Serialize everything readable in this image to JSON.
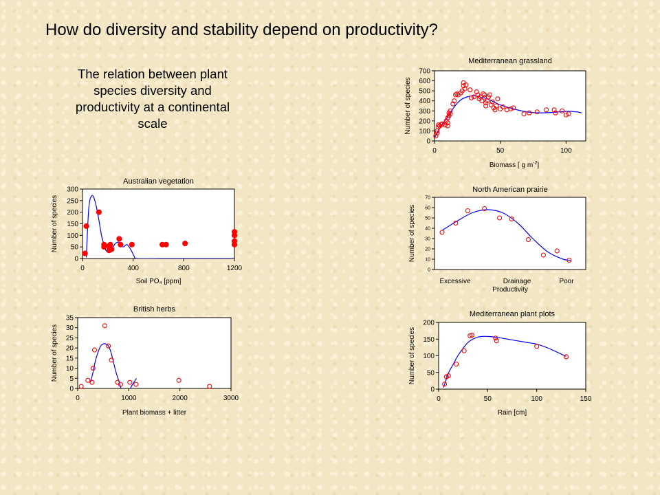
{
  "page": {
    "title": "How do diversity and stability depend on productivity?",
    "subtitle": "The relation between plant species diversity and productivity at a continental scale"
  },
  "chart_data": [
    {
      "id": "mediterranean-grassland",
      "type": "scatter",
      "title": "Mediterranean grassland",
      "xlabel": "Biomass [ g m-2]",
      "ylabel": "Number of species",
      "xlim": [
        0,
        115
      ],
      "ylim": [
        0,
        700
      ],
      "xticks": [
        0,
        50,
        100
      ],
      "yticks": [
        0,
        100,
        200,
        300,
        400,
        500,
        600,
        700
      ],
      "marker": "open",
      "series": [
        {
          "points": [
            [
              1,
              50
            ],
            [
              2,
              80
            ],
            [
              2,
              100
            ],
            [
              3,
              140
            ],
            [
              3,
              160
            ],
            [
              4,
              150
            ],
            [
              5,
              165
            ],
            [
              6,
              170
            ],
            [
              8,
              160
            ],
            [
              9,
              200
            ],
            [
              10,
              230
            ],
            [
              10,
              150
            ],
            [
              10,
              180
            ],
            [
              11,
              250
            ],
            [
              11,
              280
            ],
            [
              12,
              300
            ],
            [
              12,
              270
            ],
            [
              14,
              370
            ],
            [
              15,
              400
            ],
            [
              16,
              460
            ],
            [
              17,
              470
            ],
            [
              18,
              460
            ],
            [
              20,
              480
            ],
            [
              21,
              500
            ],
            [
              22,
              550
            ],
            [
              22,
              580
            ],
            [
              23,
              520
            ],
            [
              24,
              560
            ],
            [
              27,
              510
            ],
            [
              28,
              430
            ],
            [
              30,
              440
            ],
            [
              32,
              490
            ],
            [
              33,
              460
            ],
            [
              34,
              420
            ],
            [
              35,
              440
            ],
            [
              36,
              400
            ],
            [
              37,
              470
            ],
            [
              38,
              460
            ],
            [
              38,
              430
            ],
            [
              39,
              380
            ],
            [
              39,
              350
            ],
            [
              40,
              400
            ],
            [
              41,
              440
            ],
            [
              42,
              460
            ],
            [
              43,
              360
            ],
            [
              44,
              390
            ],
            [
              45,
              330
            ],
            [
              46,
              310
            ],
            [
              47,
              350
            ],
            [
              48,
              420
            ],
            [
              50,
              320
            ],
            [
              52,
              340
            ],
            [
              55,
              310
            ],
            [
              58,
              320
            ],
            [
              60,
              330
            ],
            [
              68,
              270
            ],
            [
              72,
              280
            ],
            [
              78,
              290
            ],
            [
              85,
              310
            ],
            [
              91,
              310
            ],
            [
              92,
              280
            ],
            [
              97,
              300
            ],
            [
              100,
              260
            ],
            [
              102,
              270
            ]
          ]
        }
      ],
      "fit": [
        [
          0,
          30
        ],
        [
          5,
          150
        ],
        [
          10,
          240
        ],
        [
          15,
          340
        ],
        [
          20,
          410
        ],
        [
          25,
          440
        ],
        [
          30,
          450
        ],
        [
          40,
          420
        ],
        [
          50,
          360
        ],
        [
          60,
          320
        ],
        [
          70,
          290
        ],
        [
          80,
          280
        ],
        [
          90,
          285
        ],
        [
          100,
          295
        ],
        [
          108,
          290
        ],
        [
          112,
          280
        ]
      ]
    },
    {
      "id": "australian-vegetation",
      "type": "scatter",
      "title": "Australian vegetation",
      "xlabel": "Soil PO₄ [ppm]",
      "ylabel": "Number of species",
      "xlim": [
        0,
        1200
      ],
      "ylim": [
        0,
        300
      ],
      "xticks": [
        0,
        400,
        800,
        1200
      ],
      "yticks": [
        0,
        50,
        100,
        150,
        200,
        250,
        300
      ],
      "marker": "filled",
      "series": [
        {
          "points": [
            [
              20,
              22
            ],
            [
              30,
              140
            ],
            [
              130,
              200
            ],
            [
              170,
              50
            ],
            [
              170,
              60
            ],
            [
              210,
              55
            ],
            [
              210,
              35
            ],
            [
              230,
              40
            ],
            [
              220,
              60
            ],
            [
              290,
              85
            ],
            [
              300,
              60
            ],
            [
              390,
              60
            ],
            [
              630,
              60
            ],
            [
              660,
              60
            ],
            [
              810,
              65
            ],
            [
              1200,
              60
            ],
            [
              1200,
              75
            ],
            [
              1200,
              100
            ],
            [
              1200,
              115
            ]
          ]
        }
      ],
      "fit": [
        [
          30,
          5
        ],
        [
          50,
          220
        ],
        [
          75,
          272
        ],
        [
          100,
          245
        ],
        [
          125,
          180
        ],
        [
          150,
          100
        ],
        [
          170,
          60
        ],
        [
          185,
          35
        ],
        [
          200,
          30
        ],
        [
          230,
          40
        ],
        [
          260,
          65
        ],
        [
          290,
          70
        ],
        [
          320,
          50
        ],
        [
          350,
          60
        ],
        [
          380,
          40
        ],
        [
          410,
          8
        ],
        [
          430,
          0
        ],
        [
          600,
          0
        ],
        [
          900,
          0
        ],
        [
          1190,
          0
        ]
      ]
    },
    {
      "id": "north-american-prairie",
      "type": "scatter",
      "title": "North American prairie",
      "xlabel": "Productivity",
      "ylabel": "Number of species",
      "xlim": [
        0,
        10
      ],
      "ylim": [
        0,
        70
      ],
      "xticks": [],
      "yticks": [
        0,
        10,
        20,
        30,
        40,
        50,
        60,
        70
      ],
      "categorical_labels": [
        "Excessive",
        "Drainage",
        "Poor"
      ],
      "marker": "open",
      "series": [
        {
          "points": [
            [
              0.5,
              36
            ],
            [
              1.4,
              45
            ],
            [
              2.2,
              57
            ],
            [
              3.3,
              59
            ],
            [
              4.3,
              50
            ],
            [
              5.1,
              49
            ],
            [
              6.2,
              29
            ],
            [
              7.2,
              14
            ],
            [
              8.1,
              18
            ],
            [
              8.9,
              9
            ]
          ]
        }
      ],
      "fit": [
        [
          0.5,
          38
        ],
        [
          1.5,
          47
        ],
        [
          2.5,
          55
        ],
        [
          3.5,
          58
        ],
        [
          4.5,
          55
        ],
        [
          5.5,
          45
        ],
        [
          6.5,
          30
        ],
        [
          7.5,
          17
        ],
        [
          8.5,
          10
        ],
        [
          9,
          9
        ]
      ]
    },
    {
      "id": "british-herbs",
      "type": "scatter",
      "title": "British herbs",
      "xlabel": "Plant biomass + litter",
      "ylabel": "Number of species",
      "xlim": [
        0,
        3000
      ],
      "ylim": [
        0,
        35
      ],
      "xticks": [
        0,
        1000,
        2000,
        3000
      ],
      "yticks": [
        0,
        5,
        10,
        15,
        20,
        25,
        30,
        35
      ],
      "marker": "open",
      "series": [
        {
          "points": [
            [
              70,
              1
            ],
            [
              200,
              4
            ],
            [
              280,
              3
            ],
            [
              300,
              10
            ],
            [
              330,
              19
            ],
            [
              530,
              31
            ],
            [
              600,
              21
            ],
            [
              660,
              14
            ],
            [
              780,
              3
            ],
            [
              840,
              2
            ],
            [
              1020,
              3
            ],
            [
              1140,
              2
            ],
            [
              1980,
              4
            ],
            [
              2580,
              1
            ]
          ]
        }
      ],
      "fit": [
        [
          250,
          3
        ],
        [
          300,
          8
        ],
        [
          350,
          14
        ],
        [
          400,
          18
        ],
        [
          450,
          21
        ],
        [
          500,
          22
        ],
        [
          550,
          22
        ],
        [
          600,
          21
        ],
        [
          650,
          18
        ],
        [
          700,
          13
        ],
        [
          750,
          8
        ],
        [
          800,
          4
        ],
        [
          850,
          0
        ],
        [
          900,
          -2
        ],
        [
          950,
          -3
        ],
        [
          1000,
          -2
        ],
        [
          1050,
          1
        ],
        [
          1100,
          3
        ],
        [
          1150,
          5
        ]
      ]
    },
    {
      "id": "mediterranean-plant-plots",
      "type": "scatter",
      "title": "Mediterranean plant plots",
      "xlabel": "Rain [cm]",
      "ylabel": "Number of species",
      "xlim": [
        0,
        150
      ],
      "ylim": [
        0,
        200
      ],
      "xticks": [
        0,
        50,
        100,
        150
      ],
      "yticks": [
        0,
        50,
        100,
        150,
        200
      ],
      "marker": "open",
      "series": [
        {
          "points": [
            [
              6,
              15
            ],
            [
              8,
              37
            ],
            [
              10,
              40
            ],
            [
              18,
              75
            ],
            [
              26,
              115
            ],
            [
              32,
              160
            ],
            [
              34,
              162
            ],
            [
              58,
              153
            ],
            [
              59,
              145
            ],
            [
              100,
              128
            ],
            [
              130,
              97
            ]
          ]
        }
      ],
      "fit": [
        [
          5,
          5
        ],
        [
          10,
          48
        ],
        [
          15,
          75
        ],
        [
          20,
          102
        ],
        [
          30,
          140
        ],
        [
          40,
          156
        ],
        [
          50,
          158
        ],
        [
          60,
          155
        ],
        [
          70,
          150
        ],
        [
          80,
          145
        ],
        [
          90,
          140
        ],
        [
          100,
          135
        ],
        [
          110,
          125
        ],
        [
          120,
          112
        ],
        [
          130,
          98
        ]
      ]
    }
  ],
  "colors": {
    "fit_line": "#0000ff",
    "marker": "#ff0000",
    "axis": "#000000",
    "plot_bg": "#ffffff"
  }
}
